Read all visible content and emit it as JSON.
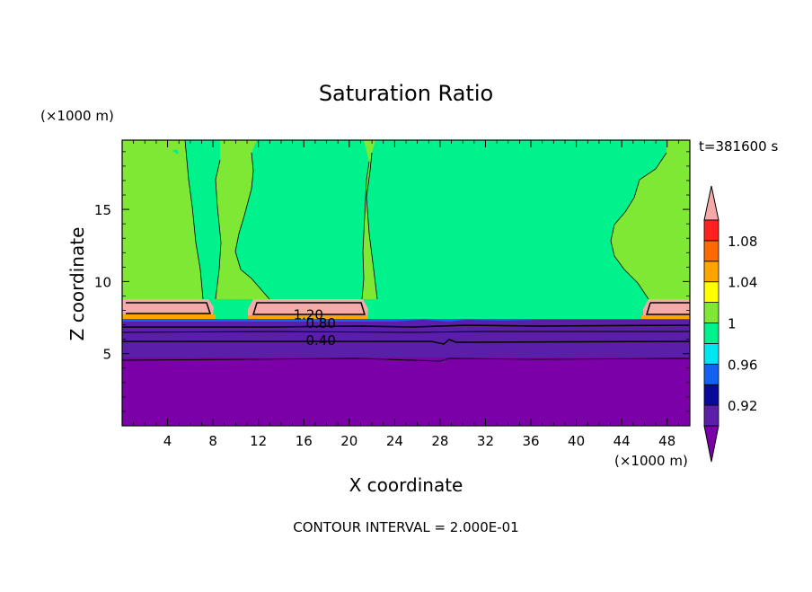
{
  "chart_data": {
    "type": "heatmap",
    "title": "Saturation Ratio",
    "xlabel": "X coordinate",
    "ylabel": "Z coordinate",
    "x_unit": "(×1000 m)",
    "y_unit": "(×1000 m)",
    "time_label": "t=381600 s",
    "footer": "CONTOUR INTERVAL = 2.000E-01",
    "xlim": [
      0,
      50
    ],
    "ylim": [
      0,
      19.8
    ],
    "x_ticks": [
      4,
      8,
      12,
      16,
      20,
      24,
      28,
      32,
      36,
      40,
      44,
      48
    ],
    "y_ticks": [
      5,
      10,
      15
    ],
    "contour_labels": [
      {
        "text": "1.20",
        "x": 16.4,
        "z": 7.7
      },
      {
        "text": "0.80",
        "x": 17.5,
        "z": 7.1
      },
      {
        "text": "0.40",
        "x": 17.5,
        "z": 5.9
      }
    ],
    "colorbar": {
      "levels": [
        0.9,
        0.92,
        0.94,
        0.96,
        0.98,
        1.0,
        1.02,
        1.04,
        1.06,
        1.08,
        1.1
      ],
      "labels": [
        "1.08",
        "1.04",
        "1",
        "0.96",
        "0.92"
      ],
      "label_values": [
        1.08,
        1.04,
        1.0,
        0.96,
        0.92
      ],
      "colors": [
        "#5a1ea8",
        "#0a0a9a",
        "#1463f0",
        "#00e6f0",
        "#00f28c",
        "#7ee835",
        "#ffff00",
        "#ffa500",
        "#ff6a00",
        "#ff2020"
      ],
      "below_color": "#7b00a8",
      "above_color": "#f5a9a9"
    },
    "regions": {
      "deep_color": "#7b00a8",
      "moist_color": "#00f28c",
      "moist_slightly_color": "#7ee835",
      "supersat_color": "#f5a9a9"
    }
  }
}
